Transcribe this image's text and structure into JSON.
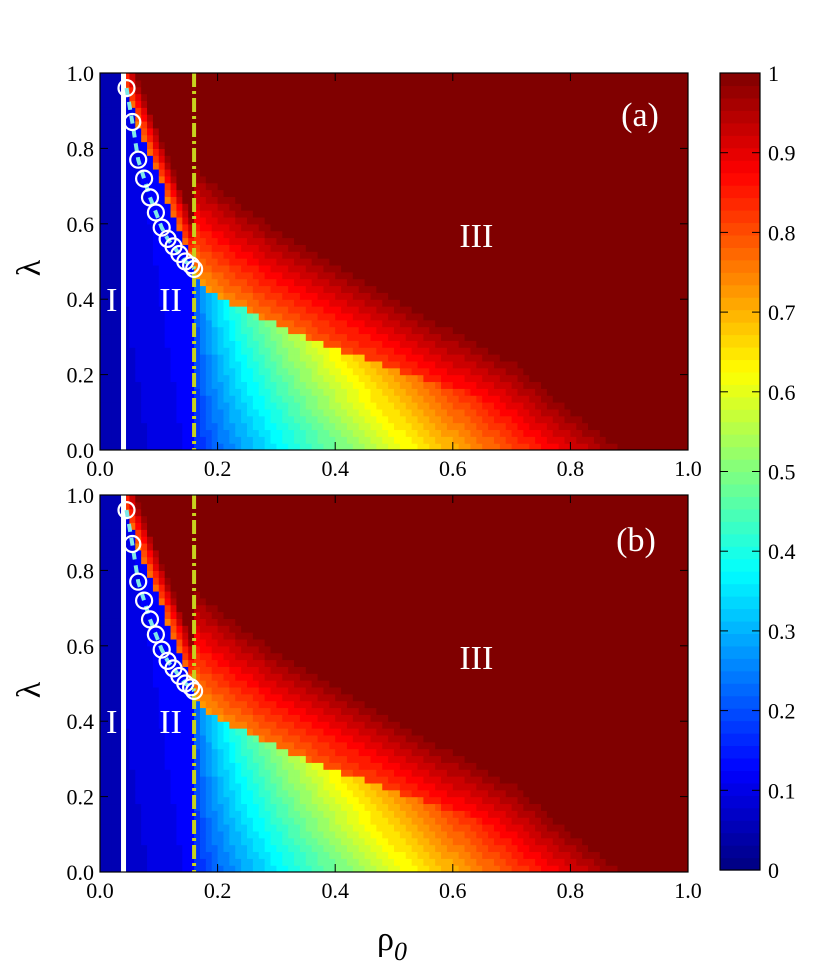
{
  "chart_data": [
    {
      "type": "heatmap",
      "panel_label": "(a)",
      "xlabel": "",
      "ylabel": "λ",
      "xlim": [
        0.0,
        1.0
      ],
      "ylim": [
        0.0,
        1.0
      ],
      "x_ticks": [
        "0.0",
        "0.2",
        "0.4",
        "0.6",
        "0.8",
        "1.0"
      ],
      "y_ticks": [
        "0.0",
        "0.2",
        "0.4",
        "0.6",
        "0.8",
        "1.0"
      ],
      "regions": [
        {
          "label": "I",
          "rho0": 0.02,
          "lambda": 0.4
        },
        {
          "label": "II",
          "rho0": 0.12,
          "lambda": 0.4
        },
        {
          "label": "III",
          "rho0": 0.64,
          "lambda": 0.57
        }
      ],
      "vertical_lines": [
        {
          "rho0": 0.04,
          "style": "solid",
          "color": "#ffffff"
        },
        {
          "rho0": 0.16,
          "style": "dash-dot",
          "color": "#c8d21e"
        }
      ],
      "boundary_points": {
        "rho0": [
          0.045,
          0.055,
          0.065,
          0.075,
          0.085,
          0.095,
          0.105,
          0.115,
          0.125,
          0.135,
          0.145,
          0.155,
          0.16
        ],
        "lambda": [
          0.96,
          0.87,
          0.77,
          0.72,
          0.67,
          0.63,
          0.59,
          0.56,
          0.54,
          0.52,
          0.5,
          0.49,
          0.48
        ]
      },
      "colorscale": "jet",
      "field_description": "value ~0.05 for rho0<0.04; rises from ~0.1 near rho0=0.04 toward 1 at large rho0 and large lambda; transition line from (0.16,0.48) bending to (1.0,0.0) region"
    },
    {
      "type": "heatmap",
      "panel_label": "(b)",
      "xlabel": "ρ0",
      "ylabel": "λ",
      "xlim": [
        0.0,
        1.0
      ],
      "ylim": [
        0.0,
        1.0
      ],
      "x_ticks": [
        "0.0",
        "0.2",
        "0.4",
        "0.6",
        "0.8",
        "1.0"
      ],
      "y_ticks": [
        "0.0",
        "0.2",
        "0.4",
        "0.6",
        "0.8",
        "1.0"
      ],
      "regions": [
        {
          "label": "I",
          "rho0": 0.02,
          "lambda": 0.4
        },
        {
          "label": "II",
          "rho0": 0.12,
          "lambda": 0.4
        },
        {
          "label": "III",
          "rho0": 0.64,
          "lambda": 0.57
        }
      ],
      "vertical_lines": [
        {
          "rho0": 0.04,
          "style": "solid",
          "color": "#ffffff"
        },
        {
          "rho0": 0.16,
          "style": "dash-dot",
          "color": "#c8d21e"
        }
      ],
      "boundary_points": {
        "rho0": [
          0.045,
          0.055,
          0.065,
          0.075,
          0.085,
          0.095,
          0.105,
          0.115,
          0.125,
          0.135,
          0.145,
          0.155,
          0.16
        ],
        "lambda": [
          0.96,
          0.87,
          0.77,
          0.72,
          0.67,
          0.63,
          0.59,
          0.56,
          0.54,
          0.52,
          0.5,
          0.49,
          0.48
        ]
      },
      "colorscale": "jet"
    }
  ],
  "colorbar": {
    "min": 0,
    "max": 1,
    "tick_labels": [
      "0",
      "0.1",
      "0.2",
      "0.3",
      "0.4",
      "0.5",
      "0.6",
      "0.7",
      "0.8",
      "0.9",
      "1"
    ]
  },
  "x_axis_title_base": "ρ",
  "x_axis_title_sub": "0"
}
